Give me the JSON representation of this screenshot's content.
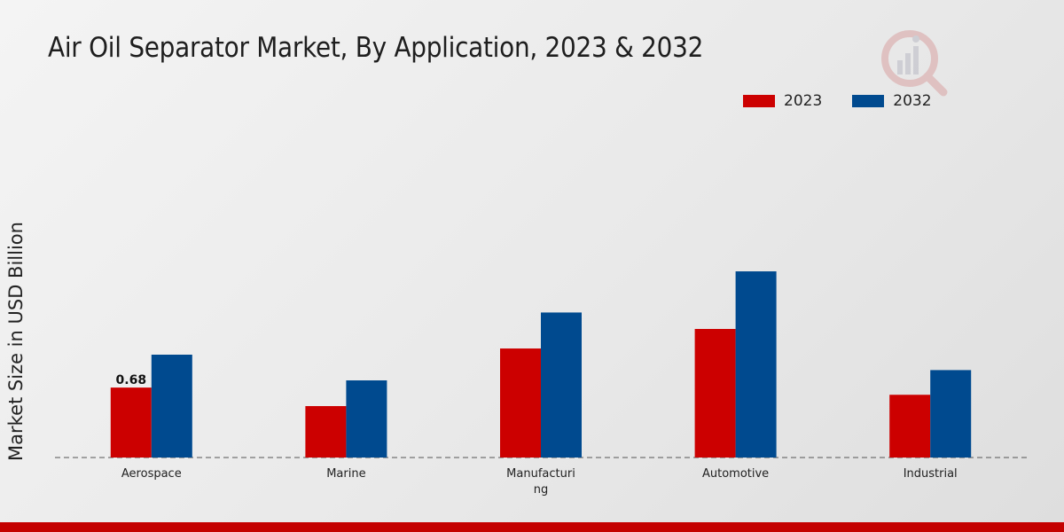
{
  "chart_data": {
    "type": "bar",
    "title": "Air Oil Separator Market, By Application, 2023 & 2032",
    "xlabel": "",
    "ylabel": "Market Size in USD Billion",
    "categories": [
      "Aerospace",
      "Marine",
      "Manufacturing",
      "Automotive",
      "Industrial"
    ],
    "category_display": [
      [
        "Aerospace"
      ],
      [
        "Marine"
      ],
      [
        "Manufacturi",
        "ng"
      ],
      [
        "Automotive"
      ],
      [
        "Industrial"
      ]
    ],
    "series": [
      {
        "name": "2023",
        "color": "#cc0000",
        "values": [
          0.68,
          0.5,
          1.06,
          1.25,
          0.61
        ]
      },
      {
        "name": "2032",
        "color": "#004a8f",
        "values": [
          1.0,
          0.75,
          1.41,
          1.81,
          0.85
        ]
      }
    ],
    "data_labels": [
      {
        "series": 0,
        "index": 0,
        "text": "0.68"
      }
    ],
    "ylim": [
      0,
      2.6
    ],
    "grid": false,
    "legend_position": "top-right"
  }
}
